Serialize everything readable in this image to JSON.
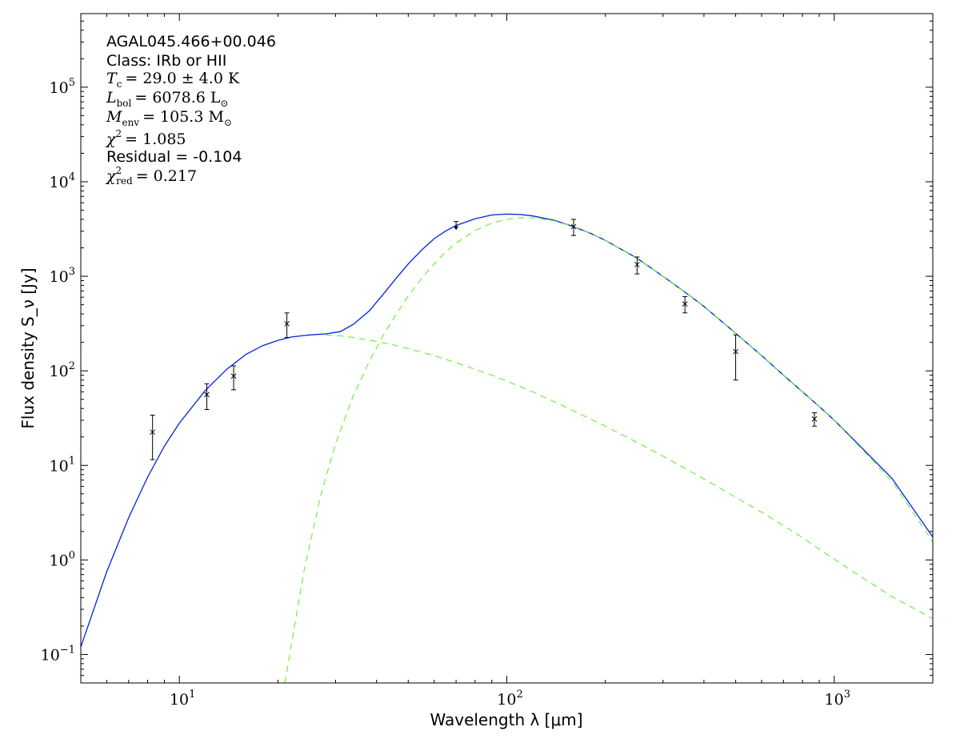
{
  "chart_data": {
    "type": "scatter",
    "xlabel": "Wavelength λ [μm]",
    "ylabel": "Flux density S_ν [Jy]",
    "xscale": "log",
    "yscale": "log",
    "xlim": [
      5,
      2000
    ],
    "ylim": [
      0.05,
      600000
    ],
    "grid": false,
    "x_tick_labels": [
      {
        "value": 10,
        "base": "10",
        "exp": "1"
      },
      {
        "value": 100,
        "base": "10",
        "exp": "2"
      },
      {
        "value": 1000,
        "base": "10",
        "exp": "3"
      }
    ],
    "y_tick_labels": [
      {
        "value": 0.1,
        "base": "10",
        "exp": "−1"
      },
      {
        "value": 1,
        "base": "10",
        "exp": "0"
      },
      {
        "value": 10,
        "base": "10",
        "exp": "1"
      },
      {
        "value": 100,
        "base": "10",
        "exp": "2"
      },
      {
        "value": 1000,
        "base": "10",
        "exp": "3"
      },
      {
        "value": 10000,
        "base": "10",
        "exp": "4"
      },
      {
        "value": 100000,
        "base": "10",
        "exp": "5"
      }
    ],
    "annotation": {
      "source": "AGAL045.466+00.046",
      "class_line": "Class: IRb or HII",
      "tc": {
        "symbol": "T",
        "sub": "c",
        "value": "= 29.0 ± 4.0 K"
      },
      "lbol": {
        "symbol": "L",
        "sub": "bol",
        "value": "= 6078.6 L",
        "unit_sub": "⊙"
      },
      "menv": {
        "symbol": "M",
        "sub": "env",
        "value": "= 105.3 M",
        "unit_sub": "⊙"
      },
      "chi2": {
        "symbol": "χ",
        "sup": "2",
        "value": "= 1.085"
      },
      "residual": "Residual = -0.104",
      "chi2_red": {
        "symbol": "χ",
        "sup": "2",
        "sub": "red",
        "value": "= 0.217"
      }
    },
    "series": [
      {
        "style": "errorbar-points",
        "color": "#000000",
        "points": [
          {
            "x": 8.28,
            "y": 22.5,
            "ylo": 11.5,
            "yhi": 34
          },
          {
            "x": 12.13,
            "y": 56,
            "ylo": 39,
            "yhi": 73
          },
          {
            "x": 14.65,
            "y": 88,
            "ylo": 63,
            "yhi": 113
          },
          {
            "x": 21.3,
            "y": 315,
            "ylo": 225,
            "yhi": 410
          },
          {
            "x": 160,
            "y": 3350,
            "ylo": 2700,
            "yhi": 4000
          },
          {
            "x": 250,
            "y": 1330,
            "ylo": 1060,
            "yhi": 1600
          },
          {
            "x": 350,
            "y": 510,
            "ylo": 410,
            "yhi": 610
          },
          {
            "x": 500,
            "y": 160,
            "ylo": 80,
            "yhi": 240
          },
          {
            "x": 870,
            "y": 31,
            "ylo": 26,
            "yhi": 36
          }
        ]
      },
      {
        "style": "upper-limit",
        "color": "#000000",
        "points": [
          {
            "x": 70,
            "y": 3800
          }
        ]
      },
      {
        "style": "solid-line",
        "color": "#0022dd",
        "x": [
          5,
          6,
          7,
          8,
          9,
          10,
          12,
          14,
          16,
          18,
          20,
          22,
          25,
          28,
          31,
          34,
          38,
          42,
          46,
          50,
          55,
          60,
          65,
          70,
          80,
          90,
          100,
          110,
          120,
          140,
          160,
          180,
          200,
          250,
          300,
          350,
          400,
          500,
          600,
          700,
          800,
          900,
          1000,
          1200,
          1500,
          2000
        ],
        "y": [
          0.12,
          0.75,
          2.8,
          7.5,
          16,
          28,
          62,
          105,
          150,
          185,
          210,
          228,
          240,
          246,
          260,
          310,
          430,
          650,
          960,
          1350,
          1900,
          2500,
          3000,
          3450,
          4050,
          4450,
          4550,
          4500,
          4350,
          3900,
          3350,
          2850,
          2400,
          1550,
          1000,
          680,
          480,
          250,
          145,
          90,
          60,
          42,
          30,
          16,
          7.3,
          1.75
        ]
      },
      {
        "style": "dashed-line",
        "color": "#66ee33",
        "x": [
          21,
          22,
          24,
          27,
          30,
          34,
          38,
          42,
          46,
          50,
          55,
          60,
          65,
          70,
          80,
          90,
          100,
          110,
          120,
          140,
          160,
          180,
          200,
          250,
          300,
          350,
          400,
          500,
          600,
          700,
          800,
          900,
          1000,
          1200,
          1500,
          2000
        ],
        "y": [
          0.05,
          0.13,
          0.75,
          4.8,
          17,
          55,
          125,
          240,
          400,
          620,
          950,
          1350,
          1800,
          2250,
          3050,
          3650,
          4000,
          4150,
          4150,
          3850,
          3350,
          2850,
          2400,
          1550,
          1000,
          680,
          480,
          250,
          145,
          90,
          60,
          42,
          30,
          15.5,
          6.8,
          1.55
        ]
      },
      {
        "style": "dashed-line",
        "color": "#66ee33",
        "x": [
          28,
          31,
          35,
          40,
          45,
          50,
          60,
          70,
          80,
          90,
          100,
          120,
          150,
          200,
          250,
          300,
          400,
          500,
          600,
          700,
          800,
          900,
          1000,
          1200,
          1500,
          2000
        ],
        "y": [
          240,
          235,
          222,
          205,
          188,
          172,
          145,
          122,
          104,
          90,
          78,
          60,
          42,
          26,
          17.5,
          12.5,
          7.2,
          4.6,
          3.2,
          2.3,
          1.72,
          1.3,
          1.02,
          0.67,
          0.41,
          0.24
        ]
      }
    ]
  }
}
